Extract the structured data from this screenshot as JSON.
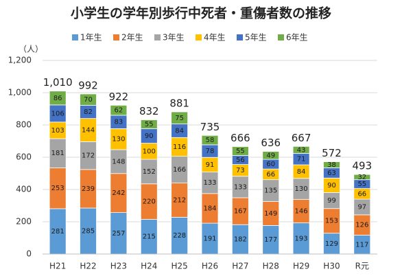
{
  "chart_data": {
    "type": "stacked_bar",
    "title": "小学生の学年別歩行中死者・重傷者数の推移",
    "y_label": "（人）",
    "categories": [
      "H21",
      "H22",
      "H23",
      "H24",
      "H25",
      "H26",
      "H27",
      "H28",
      "H29",
      "H30",
      "R元"
    ],
    "series": [
      {
        "name": "1年生",
        "color": "#5b9bd5",
        "values": [
          281,
          285,
          257,
          215,
          228,
          191,
          182,
          177,
          193,
          129,
          117
        ]
      },
      {
        "name": "2年生",
        "color": "#ed7d31",
        "values": [
          253,
          239,
          242,
          220,
          212,
          184,
          167,
          149,
          146,
          153,
          126
        ]
      },
      {
        "name": "3年生",
        "color": "#a5a5a5",
        "values": [
          181,
          172,
          148,
          152,
          166,
          133,
          133,
          135,
          130,
          99,
          97
        ]
      },
      {
        "name": "4年生",
        "color": "#ffc000",
        "values": [
          103,
          144,
          130,
          100,
          116,
          91,
          73,
          66,
          84,
          90,
          66
        ]
      },
      {
        "name": "5年生",
        "color": "#4472c4",
        "values": [
          106,
          82,
          83,
          90,
          84,
          78,
          56,
          60,
          71,
          63,
          55
        ]
      },
      {
        "name": "6年生",
        "color": "#70ad47",
        "values": [
          86,
          70,
          62,
          55,
          75,
          58,
          55,
          49,
          43,
          38,
          32
        ]
      }
    ],
    "totals": {
      "values": [
        1010,
        992,
        922,
        832,
        881,
        735,
        666,
        636,
        667,
        572,
        493
      ],
      "value_labels": [
        "1,010",
        "992",
        "922",
        "832",
        "881",
        "735",
        "666",
        "636",
        "667",
        "572",
        "493"
      ]
    },
    "ylim": [
      0,
      1200
    ],
    "yticks": [
      0,
      200,
      400,
      600,
      800,
      {
        "value": 1000,
        "label": "1,000"
      },
      {
        "value": 1200,
        "label": "1,200"
      }
    ],
    "grid": true,
    "legend": "top"
  }
}
